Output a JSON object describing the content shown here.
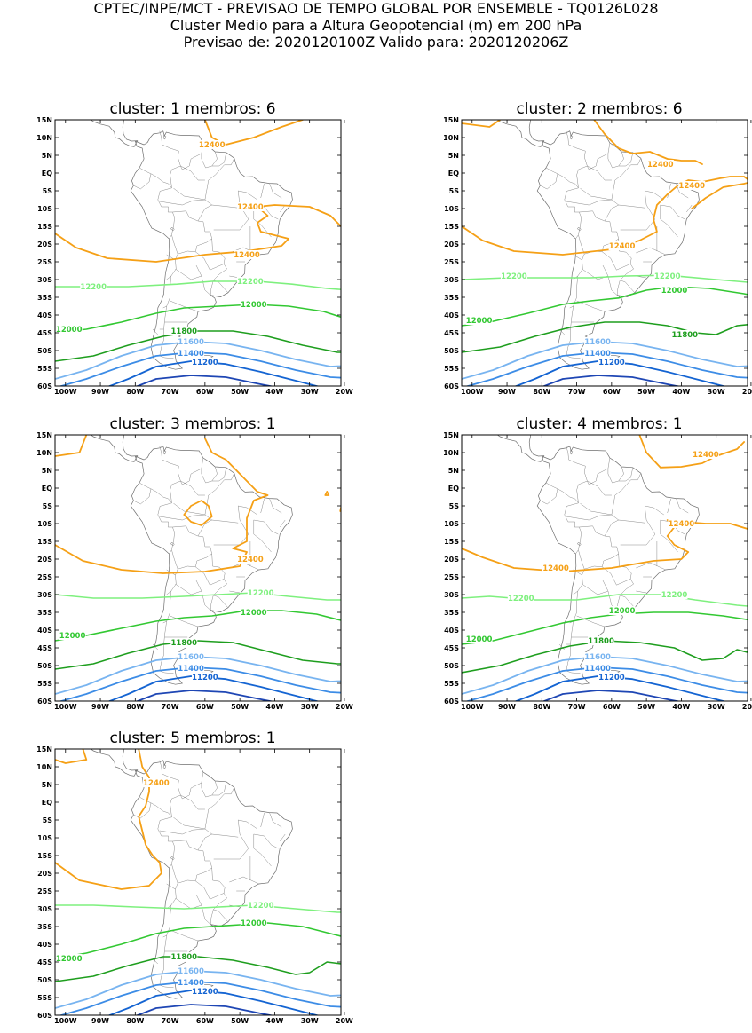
{
  "header": {
    "line1": "CPTEC/INPE/MCT - PREVISAO DE TEMPO GLOBAL POR ENSEMBLE - TQ0126L028",
    "line2": "Cluster Medio para a Altura Geopotencial (m) em 200 hPa",
    "line3": "Previsao de: 2020120100Z    Valido para: 2020120206Z"
  },
  "axes": {
    "lat_ticks": [
      "15N",
      "10N",
      "5N",
      "EQ",
      "5S",
      "10S",
      "15S",
      "20S",
      "25S",
      "30S",
      "35S",
      "40S",
      "45S",
      "50S",
      "55S",
      "60S"
    ],
    "lon_ticks": [
      "100W",
      "90W",
      "80W",
      "70W",
      "60W",
      "50W",
      "40W",
      "30W",
      "20W"
    ]
  },
  "colors": {
    "12400": "#f5a016",
    "12200": "#7ef07e",
    "12000": "#32c832",
    "11800": "#1e9e1e",
    "11600": "#78b4f0",
    "11400": "#3c8ce6",
    "11200": "#1464d2",
    "11000": "#1e46b4"
  },
  "panels": [
    {
      "cluster_label": "cluster:",
      "cluster": "1",
      "membros_label": "membros:",
      "membros": "6",
      "labels": {
        "12400a": "12400",
        "12400b": "12400",
        "12400c": "12400",
        "12200a": "12200",
        "12200b": "12200",
        "12000a": "12000",
        "12000b": "12000",
        "11800": "11800",
        "11600": "11600",
        "11400": "11400",
        "11200": "11200"
      }
    },
    {
      "cluster_label": "cluster:",
      "cluster": "2",
      "membros_label": "membros:",
      "membros": "6",
      "labels": {
        "12400a": "12400",
        "12400b": "12400",
        "12400c": "12400",
        "12200a": "12200",
        "12200b": "12200",
        "12000a": "12000",
        "12000b": "12000",
        "11800": "11800",
        "11600": "11600",
        "11400": "11400",
        "11200": "11200"
      }
    },
    {
      "cluster_label": "cluster:",
      "cluster": "3",
      "membros_label": "membros:",
      "membros": "1",
      "labels": {
        "12400a": "",
        "12400b": "",
        "12400c": "12400",
        "12200a": "",
        "12200b": "12200",
        "12000a": "12000",
        "12000b": "12000",
        "11800": "11800",
        "11600": "11600",
        "11400": "11400",
        "11200": "11200"
      }
    },
    {
      "cluster_label": "cluster:",
      "cluster": "4",
      "membros_label": "membros:",
      "membros": "1",
      "labels": {
        "12400a": "12400",
        "12400b": "12400",
        "12400c": "12400",
        "12200a": "12200",
        "12200b": "12200",
        "12000a": "12000",
        "12000b": "12000",
        "11800": "11800",
        "11600": "11600",
        "11400": "11400",
        "11200": "11200"
      }
    },
    {
      "cluster_label": "cluster:",
      "cluster": "5",
      "membros_label": "membros:",
      "membros": "1",
      "labels": {
        "12400a": "",
        "12400b": "12400",
        "12400c": "",
        "12200a": "",
        "12200b": "12200",
        "12000a": "12000",
        "12000b": "12000",
        "11800": "11800",
        "11600": "11600",
        "11400": "11400",
        "11200": "11200"
      }
    }
  ]
}
